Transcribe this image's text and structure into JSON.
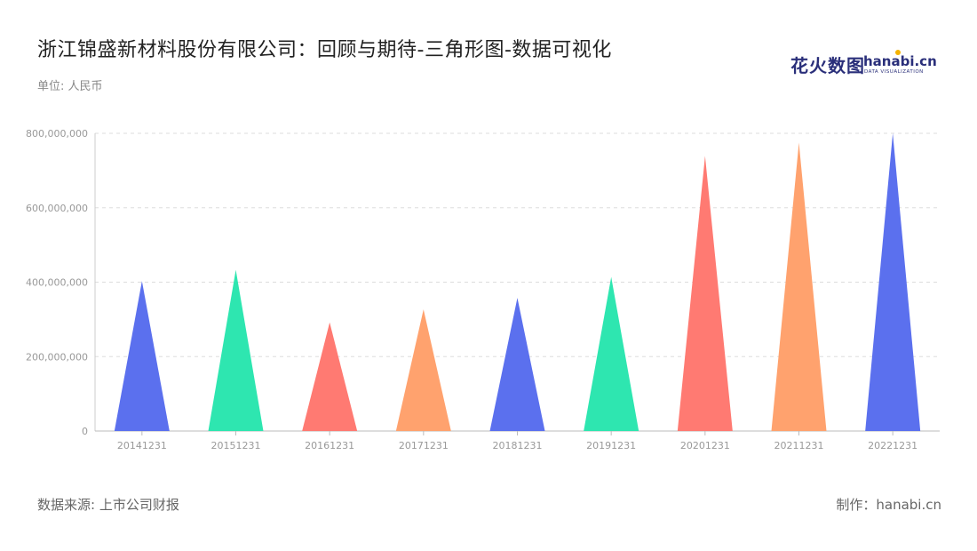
{
  "title": "浙江锦盛新材料股份有限公司：回顾与期待-三角形图-数据可视化",
  "unit_label": "单位: 人民币",
  "source_label": "数据来源: 上市公司财报",
  "credit_label": "制作：hanabi.cn",
  "logo": {
    "cn": "花火数图",
    "en": "hanabi.cn",
    "sub": "DATA VISUALIZATION"
  },
  "chart_data": {
    "type": "bar",
    "bar_shape": "triangle",
    "categories": [
      "20141231",
      "20151231",
      "20161231",
      "20171231",
      "20181231",
      "20191231",
      "20201231",
      "20211231",
      "20221231"
    ],
    "values": [
      403000000,
      433000000,
      292000000,
      327000000,
      358000000,
      414000000,
      739000000,
      775000000,
      800000000
    ],
    "colors": [
      "#5b70ee",
      "#2ee6b0",
      "#ff7a72",
      "#ffa26e",
      "#5b70ee",
      "#2ee6b0",
      "#ff7a72",
      "#ffa26e",
      "#5b70ee"
    ],
    "ylim": [
      0,
      800000000
    ],
    "yticks": [
      0,
      200000000,
      400000000,
      600000000,
      800000000
    ],
    "ytick_labels": [
      "0",
      "200,000,000",
      "400,000,000",
      "600,000,000",
      "800,000,000"
    ],
    "grid": true,
    "legend": "none"
  }
}
